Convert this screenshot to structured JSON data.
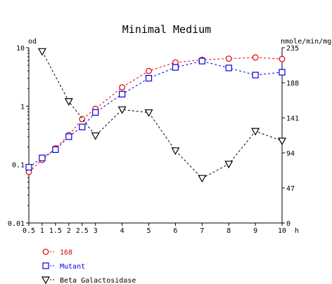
{
  "chart_data": {
    "type": "line",
    "title": "Minimal Medium",
    "y_left_label": "od",
    "y_right_label": "nmole/min/mg",
    "x_unit_label": "h",
    "x_ticks": [
      "0.5",
      "1",
      "1.5",
      "2",
      "2.5",
      "3",
      "4",
      "5",
      "6",
      "7",
      "8",
      "9",
      "10"
    ],
    "x_range": [
      0.5,
      10
    ],
    "y_left_scale": "log",
    "y_left_range": [
      0.01,
      10
    ],
    "y_left_ticks": [
      "10",
      "1",
      "0.1",
      "0.01"
    ],
    "y_right_range": [
      0,
      235
    ],
    "y_right_ticks": [
      "235",
      "188",
      "141",
      "94",
      "47",
      "0"
    ],
    "grid": false,
    "legend_position": "bottom-left",
    "series": [
      {
        "name": "168",
        "axis": "left",
        "marker": "circle",
        "color": "#dd0000",
        "points": [
          [
            0.5,
            0.075
          ],
          [
            1,
            0.12
          ],
          [
            1.5,
            0.19
          ],
          [
            2,
            0.32
          ],
          [
            2.5,
            0.6
          ],
          [
            3,
            0.9
          ],
          [
            4,
            2.1
          ],
          [
            5,
            4.0
          ],
          [
            6,
            5.6
          ],
          [
            7,
            6.2
          ],
          [
            8,
            6.5
          ],
          [
            9,
            6.8
          ],
          [
            10,
            6.4
          ]
        ]
      },
      {
        "name": "Mutant",
        "axis": "left",
        "marker": "square",
        "color": "#0000dd",
        "points": [
          [
            0.5,
            0.09
          ],
          [
            1,
            0.13
          ],
          [
            1.5,
            0.18
          ],
          [
            2,
            0.3
          ],
          [
            2.5,
            0.44
          ],
          [
            3,
            0.78
          ],
          [
            4,
            1.6
          ],
          [
            5,
            3.0
          ],
          [
            6,
            4.6
          ],
          [
            7,
            5.9
          ],
          [
            8,
            4.5
          ],
          [
            9,
            3.4
          ],
          [
            10,
            3.8
          ]
        ]
      },
      {
        "name": "Beta Galactosidase",
        "axis": "right",
        "marker": "triangle-down",
        "color": "#000000",
        "points": [
          [
            1,
            230
          ],
          [
            2,
            163
          ],
          [
            3,
            117
          ],
          [
            4,
            152
          ],
          [
            5,
            148
          ],
          [
            6,
            97
          ],
          [
            7,
            60
          ],
          [
            8,
            79
          ],
          [
            9,
            123
          ],
          [
            10,
            110
          ]
        ]
      }
    ]
  }
}
